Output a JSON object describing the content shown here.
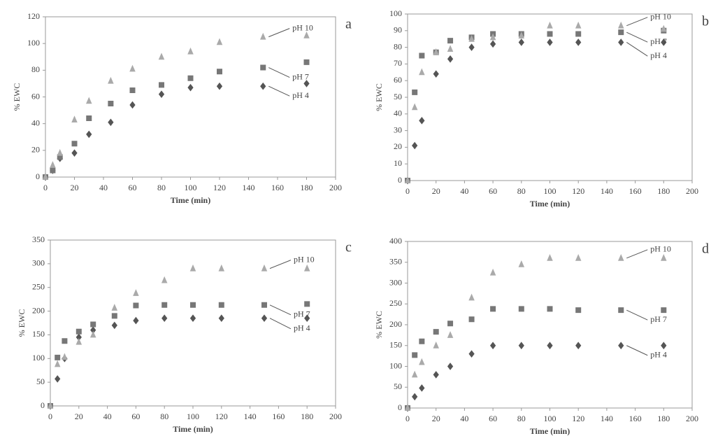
{
  "chart_data": [
    {
      "type": "scatter",
      "panel": "a",
      "xlabel": "Time (min)",
      "ylabel": "% EWC",
      "x": [
        0,
        5,
        10,
        20,
        30,
        45,
        60,
        80,
        100,
        120,
        150,
        180
      ],
      "xlim": [
        0,
        200
      ],
      "xticks": [
        0,
        20,
        40,
        60,
        80,
        100,
        120,
        140,
        160,
        180,
        200
      ],
      "ylim": [
        0,
        120
      ],
      "yticks": [
        0,
        20,
        40,
        60,
        80,
        100,
        120
      ],
      "series": [
        {
          "name": "pH 4",
          "color": "#555555",
          "marker": "diamond",
          "values": [
            0,
            5,
            14,
            18,
            32,
            41,
            54,
            62,
            67,
            68,
            68,
            70
          ]
        },
        {
          "name": "pH 7",
          "color": "#777777",
          "marker": "square",
          "values": [
            0,
            5,
            15,
            25,
            44,
            55,
            65,
            69,
            74,
            79,
            82,
            86
          ]
        },
        {
          "name": "pH 10",
          "color": "#aaaaaa",
          "marker": "triangle",
          "values": [
            0,
            9,
            18,
            43,
            57,
            72,
            81,
            90,
            94,
            101,
            105,
            106
          ]
        }
      ]
    },
    {
      "type": "scatter",
      "panel": "b",
      "xlabel": "Time (min)",
      "ylabel": "% EWC",
      "x": [
        0,
        5,
        10,
        20,
        30,
        45,
        60,
        80,
        100,
        120,
        150,
        180
      ],
      "xlim": [
        0,
        200
      ],
      "xticks": [
        0,
        20,
        40,
        60,
        80,
        100,
        120,
        140,
        160,
        180,
        200
      ],
      "ylim": [
        0,
        100
      ],
      "yticks": [
        0,
        10,
        20,
        30,
        40,
        50,
        60,
        70,
        80,
        90,
        100
      ],
      "series": [
        {
          "name": "pH 4",
          "color": "#555555",
          "marker": "diamond",
          "values": [
            0,
            21,
            36,
            64,
            73,
            80,
            82,
            83,
            83,
            83,
            83,
            83
          ]
        },
        {
          "name": "pH 7",
          "color": "#777777",
          "marker": "square",
          "values": [
            0,
            53,
            75,
            77,
            84,
            86,
            88,
            88,
            88,
            88,
            89,
            90
          ]
        },
        {
          "name": "pH 10",
          "color": "#aaaaaa",
          "marker": "triangle",
          "values": [
            0,
            44,
            65,
            77,
            79,
            85,
            86,
            87,
            93,
            93,
            93,
            91
          ]
        }
      ]
    },
    {
      "type": "scatter",
      "panel": "c",
      "xlabel": "Time (min)",
      "ylabel": "% EWC",
      "x": [
        0,
        5,
        10,
        20,
        30,
        45,
        60,
        80,
        100,
        120,
        150,
        180
      ],
      "xlim": [
        0,
        200
      ],
      "xticks": [
        0,
        20,
        40,
        60,
        80,
        100,
        120,
        140,
        160,
        180,
        200
      ],
      "ylim": [
        0,
        350
      ],
      "yticks": [
        0,
        50,
        100,
        150,
        200,
        250,
        300,
        350
      ],
      "series": [
        {
          "name": "pH 4",
          "color": "#555555",
          "marker": "diamond",
          "values": [
            0,
            57,
            100,
            145,
            160,
            170,
            180,
            185,
            185,
            185,
            185,
            185
          ]
        },
        {
          "name": "pH 7",
          "color": "#777777",
          "marker": "square",
          "values": [
            0,
            102,
            137,
            157,
            172,
            190,
            212,
            213,
            213,
            213,
            213,
            215
          ]
        },
        {
          "name": "pH 10",
          "color": "#aaaaaa",
          "marker": "triangle",
          "values": [
            0,
            88,
            103,
            135,
            150,
            207,
            238,
            265,
            290,
            290,
            290,
            290
          ]
        }
      ]
    },
    {
      "type": "scatter",
      "panel": "d",
      "xlabel": "Time (min)",
      "ylabel": "% EWC",
      "x": [
        0,
        5,
        10,
        20,
        30,
        45,
        60,
        80,
        100,
        120,
        150,
        180
      ],
      "xlim": [
        0,
        200
      ],
      "xticks": [
        0,
        20,
        40,
        60,
        80,
        100,
        120,
        140,
        160,
        180,
        200
      ],
      "ylim": [
        0,
        400
      ],
      "yticks": [
        0,
        50,
        100,
        150,
        200,
        250,
        300,
        350,
        400
      ],
      "series": [
        {
          "name": "pH 4",
          "color": "#555555",
          "marker": "diamond",
          "values": [
            0,
            27,
            48,
            80,
            100,
            130,
            150,
            150,
            150,
            150,
            150,
            150
          ]
        },
        {
          "name": "pH 7",
          "color": "#777777",
          "marker": "square",
          "values": [
            0,
            127,
            160,
            183,
            203,
            213,
            238,
            238,
            238,
            235,
            235,
            235
          ]
        },
        {
          "name": "pH 10",
          "color": "#aaaaaa",
          "marker": "triangle",
          "values": [
            0,
            80,
            110,
            150,
            175,
            265,
            325,
            345,
            360,
            360,
            360,
            360
          ]
        }
      ]
    }
  ]
}
